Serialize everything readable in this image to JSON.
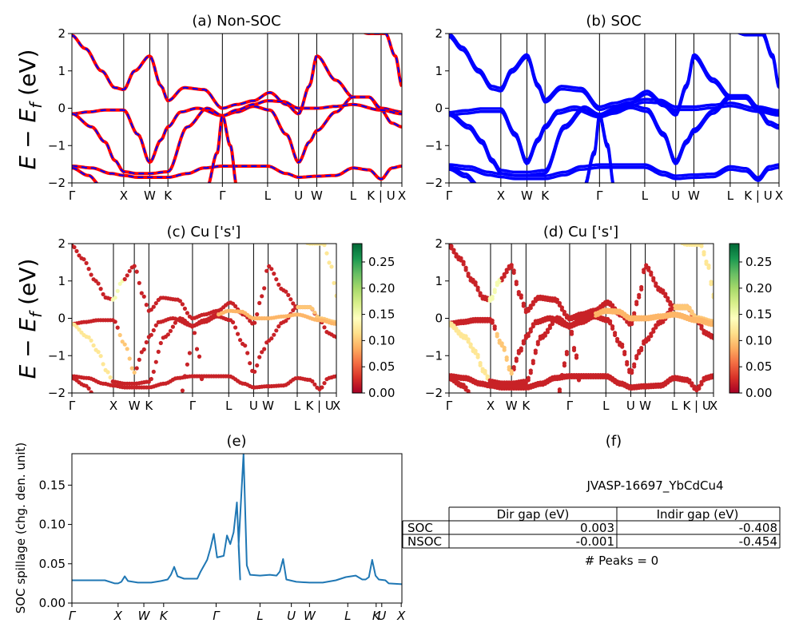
{
  "figure": {
    "ylabel_main": "E − E",
    "ylabel_sub": "f",
    "ylabel_unit": " (eV)"
  },
  "colors": {
    "nonsoc_line": "#ff0000",
    "nonsoc_dash": "#0000ff",
    "soc_line": "#0000ff",
    "spillage_line": "#1f77b4",
    "cmap": [
      "#a50026",
      "#d73027",
      "#f46d43",
      "#fdae61",
      "#fee08b",
      "#ffffbf",
      "#d9ef8b",
      "#a6d96a",
      "#66bd63",
      "#1a9850",
      "#006837"
    ]
  },
  "chart_data": [
    {
      "id": "a",
      "type": "line",
      "title": "(a) Non-SOC",
      "ylim": [
        -2,
        2
      ],
      "yticks": [
        "2",
        "1",
        "0",
        "−1",
        "−2"
      ],
      "kpath": [
        {
          "label": "Γ",
          "x": 0.0
        },
        {
          "label": "X",
          "x": 0.157
        },
        {
          "label": "W",
          "x": 0.236
        },
        {
          "label": "K",
          "x": 0.291
        },
        {
          "label": "Γ",
          "x": 0.456
        },
        {
          "label": "L",
          "x": 0.593
        },
        {
          "label": "U",
          "x": 0.687
        },
        {
          "label": "W",
          "x": 0.742
        },
        {
          "label": "L",
          "x": 0.852
        },
        {
          "label": "K | U",
          "x": 0.937
        },
        {
          "label": "X",
          "x": 1.0
        }
      ],
      "series": [
        {
          "values": [
            [
              0,
              1.95
            ],
            [
              0.04,
              1.6
            ],
            [
              0.09,
              1.0
            ],
            [
              0.13,
              0.55
            ],
            [
              0.157,
              0.5
            ],
            [
              0.19,
              1.0
            ],
            [
              0.236,
              1.4
            ],
            [
              0.27,
              0.6
            ],
            [
              0.291,
              0.2
            ],
            [
              0.34,
              0.55
            ],
            [
              0.4,
              0.5
            ],
            [
              0.456,
              0.0
            ],
            [
              0.5,
              0.1
            ],
            [
              0.55,
              0.2
            ],
            [
              0.6,
              0.42
            ],
            [
              0.65,
              0.1
            ],
            [
              0.687,
              -0.15
            ],
            [
              0.72,
              0.6
            ],
            [
              0.742,
              1.4
            ],
            [
              0.8,
              0.75
            ],
            [
              0.852,
              0.3
            ],
            [
              0.9,
              0.3
            ],
            [
              0.937,
              -0.05
            ],
            [
              0.97,
              -0.4
            ],
            [
              1.0,
              -0.5
            ]
          ]
        },
        {
          "values": [
            [
              0,
              -0.15
            ],
            [
              0.05,
              -0.1
            ],
            [
              0.1,
              -0.05
            ],
            [
              0.157,
              -0.05
            ],
            [
              0.2,
              -0.7
            ],
            [
              0.236,
              -1.45
            ],
            [
              0.27,
              -0.85
            ],
            [
              0.291,
              -0.5
            ],
            [
              0.33,
              -0.1
            ],
            [
              0.38,
              0.0
            ],
            [
              0.456,
              -0.2
            ],
            [
              0.5,
              -0.1
            ],
            [
              0.55,
              0.05
            ],
            [
              0.6,
              -0.05
            ],
            [
              0.65,
              -0.7
            ],
            [
              0.687,
              -1.45
            ],
            [
              0.72,
              -0.9
            ],
            [
              0.742,
              -0.6
            ],
            [
              0.8,
              -0.1
            ],
            [
              0.852,
              0.3
            ],
            [
              0.9,
              0.3
            ],
            [
              0.937,
              0.0
            ],
            [
              1.0,
              -0.1
            ]
          ]
        },
        {
          "values": [
            [
              0,
              -0.15
            ],
            [
              0.06,
              -0.5
            ],
            [
              0.1,
              -0.9
            ],
            [
              0.13,
              -1.4
            ],
            [
              0.157,
              -1.7
            ],
            [
              0.2,
              -1.75
            ],
            [
              0.236,
              -1.75
            ],
            [
              0.291,
              -1.7
            ],
            [
              0.35,
              -0.5
            ],
            [
              0.41,
              0.0
            ],
            [
              0.456,
              -0.2
            ],
            [
              0.5,
              -0.05
            ],
            [
              0.55,
              0.1
            ],
            [
              0.593,
              0.2
            ],
            [
              0.64,
              0.18
            ],
            [
              0.687,
              0.0
            ],
            [
              0.742,
              0.0
            ],
            [
              0.8,
              0.05
            ],
            [
              0.852,
              0.1
            ],
            [
              0.937,
              -0.05
            ],
            [
              1.0,
              -0.15
            ]
          ]
        },
        {
          "values": [
            [
              0,
              -1.55
            ],
            [
              0.06,
              -1.6
            ],
            [
              0.12,
              -1.75
            ],
            [
              0.157,
              -1.8
            ],
            [
              0.2,
              -1.85
            ],
            [
              0.236,
              -1.85
            ],
            [
              0.291,
              -1.85
            ],
            [
              0.35,
              -1.75
            ],
            [
              0.4,
              -1.6
            ],
            [
              0.456,
              -1.55
            ],
            [
              0.52,
              -1.55
            ],
            [
              0.593,
              -1.55
            ],
            [
              0.65,
              -1.75
            ],
            [
              0.687,
              -1.85
            ],
            [
              0.742,
              -1.82
            ],
            [
              0.8,
              -1.8
            ],
            [
              0.852,
              -1.6
            ],
            [
              0.9,
              -1.65
            ],
            [
              0.937,
              -1.9
            ],
            [
              0.97,
              -1.6
            ],
            [
              1.0,
              -1.55
            ]
          ]
        },
        {
          "values": [
            [
              0,
              -1.6
            ],
            [
              0.05,
              -1.8
            ],
            [
              0.09,
              -2.1
            ]
          ]
        },
        {
          "values": [
            [
              0.41,
              -2.1
            ],
            [
              0.44,
              -1.2
            ],
            [
              0.456,
              -0.2
            ],
            [
              0.48,
              -1.0
            ],
            [
              0.5,
              -2.1
            ]
          ]
        },
        {
          "values": [
            [
              0.86,
              2.1
            ],
            [
              0.9,
              2.0
            ],
            [
              0.95,
              2.0
            ],
            [
              0.98,
              1.4
            ],
            [
              1.0,
              0.6
            ]
          ]
        }
      ]
    },
    {
      "id": "b",
      "type": "line",
      "title": "(b) SOC",
      "ylim": [
        -2,
        2
      ],
      "yticks": [
        "2",
        "1",
        "0",
        "−1",
        "−2"
      ],
      "kpath_ref": "a"
    },
    {
      "id": "c",
      "type": "scatter",
      "title": "(c)  Cu ['s']",
      "ylim": [
        -2,
        2
      ],
      "yticks": [
        "2",
        "1",
        "0",
        "−1",
        "−2"
      ],
      "kpath": [
        {
          "label": "Γ",
          "x": 0.0
        },
        {
          "label": "X",
          "x": 0.157
        },
        {
          "label": "W",
          "x": 0.236
        },
        {
          "label": "K",
          "x": 0.291
        },
        {
          "label": "Γ",
          "x": 0.456
        },
        {
          "label": "L",
          "x": 0.593
        },
        {
          "label": "U",
          "x": 0.687
        },
        {
          "label": "W",
          "x": 0.742
        },
        {
          "label": "L",
          "x": 0.852
        },
        {
          "label": "K | U",
          "x": 0.937
        },
        {
          "label": "X",
          "x": 1.0
        }
      ],
      "colorbar": {
        "ticks": [
          "0.00",
          "0.05",
          "0.10",
          "0.15",
          "0.20",
          "0.25"
        ],
        "range": [
          0,
          0.285
        ]
      }
    },
    {
      "id": "d",
      "type": "scatter",
      "title": "(d) Cu ['s']",
      "ylim": [
        -2,
        2
      ],
      "yticks": [
        "2",
        "1",
        "0",
        "−1",
        "−2"
      ],
      "kpath_ref": "c",
      "colorbar": {
        "ticks": [
          "0.00",
          "0.05",
          "0.10",
          "0.15",
          "0.20",
          "0.25"
        ],
        "range": [
          0,
          0.285
        ]
      }
    },
    {
      "id": "e",
      "type": "line",
      "title": "(e)",
      "ylabel": "SOC spillage (chg. den. unit)",
      "ylim": [
        0,
        0.19
      ],
      "yticks": [
        "0.00",
        "0.05",
        "0.10",
        "0.15"
      ],
      "ytick_values": [
        0,
        0.05,
        0.1,
        0.15
      ],
      "kpath": [
        {
          "label": "Γ",
          "x": 0.0
        },
        {
          "label": "X",
          "x": 0.14
        },
        {
          "label": "W",
          "x": 0.218
        },
        {
          "label": "K",
          "x": 0.278
        },
        {
          "label": "Γ",
          "x": 0.437
        },
        {
          "label": "L",
          "x": 0.57
        },
        {
          "label": "U",
          "x": 0.665
        },
        {
          "label": "W",
          "x": 0.72
        },
        {
          "label": "L",
          "x": 0.836
        },
        {
          "label": "K",
          "x": 0.922
        },
        {
          "label": "U",
          "x": 0.939
        },
        {
          "label": "X",
          "x": 0.998
        }
      ],
      "values": [
        [
          0,
          0.029
        ],
        [
          0.05,
          0.029
        ],
        [
          0.1,
          0.029
        ],
        [
          0.13,
          0.025
        ],
        [
          0.14,
          0.025
        ],
        [
          0.15,
          0.027
        ],
        [
          0.16,
          0.034
        ],
        [
          0.17,
          0.028
        ],
        [
          0.2,
          0.026
        ],
        [
          0.24,
          0.026
        ],
        [
          0.27,
          0.028
        ],
        [
          0.29,
          0.03
        ],
        [
          0.3,
          0.036
        ],
        [
          0.31,
          0.046
        ],
        [
          0.32,
          0.034
        ],
        [
          0.34,
          0.031
        ],
        [
          0.38,
          0.031
        ],
        [
          0.39,
          0.04
        ],
        [
          0.41,
          0.055
        ],
        [
          0.42,
          0.07
        ],
        [
          0.43,
          0.088
        ],
        [
          0.44,
          0.058
        ],
        [
          0.46,
          0.06
        ],
        [
          0.47,
          0.086
        ],
        [
          0.48,
          0.075
        ],
        [
          0.49,
          0.09
        ],
        [
          0.5,
          0.128
        ],
        [
          0.51,
          0.03
        ],
        [
          0.505,
          0.073
        ],
        [
          0.52,
          0.19
        ],
        [
          0.53,
          0.048
        ],
        [
          0.54,
          0.036
        ],
        [
          0.57,
          0.035
        ],
        [
          0.6,
          0.036
        ],
        [
          0.62,
          0.035
        ],
        [
          0.63,
          0.04
        ],
        [
          0.64,
          0.056
        ],
        [
          0.65,
          0.03
        ],
        [
          0.68,
          0.027
        ],
        [
          0.72,
          0.026
        ],
        [
          0.76,
          0.026
        ],
        [
          0.8,
          0.029
        ],
        [
          0.83,
          0.033
        ],
        [
          0.86,
          0.035
        ],
        [
          0.88,
          0.03
        ],
        [
          0.89,
          0.03
        ],
        [
          0.9,
          0.033
        ],
        [
          0.91,
          0.055
        ],
        [
          0.92,
          0.035
        ],
        [
          0.93,
          0.03
        ],
        [
          0.95,
          0.029
        ],
        [
          0.96,
          0.025
        ],
        [
          1.0,
          0.024
        ]
      ]
    },
    {
      "id": "f",
      "type": "table",
      "title": "(f)",
      "caption": "JVASP-16697_YbCdCu4",
      "columns": [
        "Dir gap (eV)",
        "Indir gap (eV)"
      ],
      "rows": [
        {
          "label": "SOC",
          "values": [
            "0.003",
            "-0.408"
          ]
        },
        {
          "label": "NSOC",
          "values": [
            "-0.001",
            "-0.454"
          ]
        }
      ],
      "footer": "# Peaks = 0"
    }
  ]
}
